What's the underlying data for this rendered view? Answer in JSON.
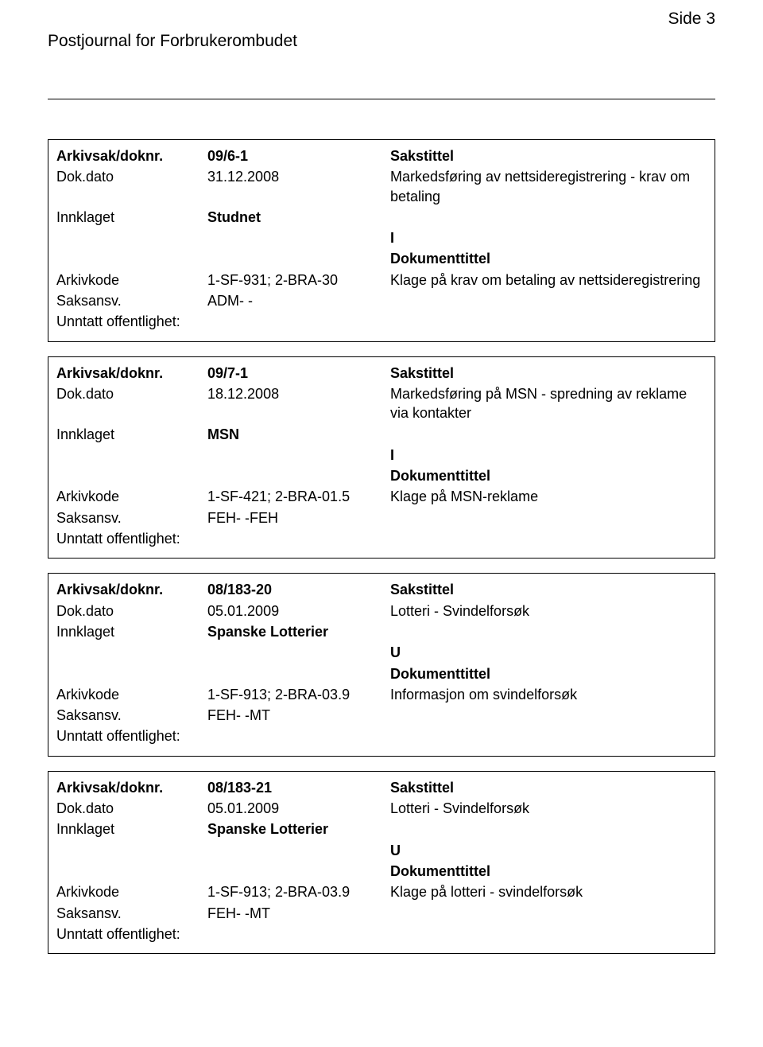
{
  "header": {
    "title": "Postjournal for Forbrukerombudet",
    "page_label": "Side 3"
  },
  "labels": {
    "arkivsak": "Arkivsak/doknr.",
    "dokdato": "Dok.dato",
    "innklaget": "Innklaget",
    "arkivkode": "Arkivkode",
    "saksansv": "Saksansv.",
    "unntatt": "Unntatt offentlighet:",
    "sakstittel": "Sakstittel",
    "dokumenttittel": "Dokumenttittel"
  },
  "entries": [
    {
      "doknr": "09/6-1",
      "dokdato": "31.12.2008",
      "sakstittel": "Markedsføring av nettsideregistrering - krav om betaling",
      "innklaget": "Studnet",
      "io": "I",
      "arkivkode": "1-SF-931; 2-BRA-30",
      "dokumenttittel": "Klage på krav om betaling av nettsideregistrering",
      "saksansv": "ADM- -",
      "unntatt": ""
    },
    {
      "doknr": "09/7-1",
      "dokdato": "18.12.2008",
      "sakstittel": "Markedsføring på MSN - spredning av reklame via kontakter",
      "innklaget": "MSN",
      "io": "I",
      "arkivkode": "1-SF-421; 2-BRA-01.5",
      "dokumenttittel": "Klage på  MSN-reklame",
      "saksansv": "FEH- -FEH",
      "unntatt": ""
    },
    {
      "doknr": "08/183-20",
      "dokdato": "05.01.2009",
      "sakstittel": "Lotteri - Svindelforsøk",
      "innklaget": "Spanske Lotterier",
      "io": "U",
      "arkivkode": "1-SF-913; 2-BRA-03.9",
      "dokumenttittel": "Informasjon om svindelforsøk",
      "saksansv": "FEH- -MT",
      "unntatt": ""
    },
    {
      "doknr": "08/183-21",
      "dokdato": "05.01.2009",
      "sakstittel": "Lotteri - Svindelforsøk",
      "innklaget": "Spanske Lotterier",
      "io": "U",
      "arkivkode": "1-SF-913; 2-BRA-03.9",
      "dokumenttittel": "Klage på lotteri - svindelforsøk",
      "saksansv": "FEH- -MT",
      "unntatt": ""
    }
  ]
}
